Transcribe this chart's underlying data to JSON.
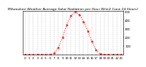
{
  "title": "Milwaukee Weather Average Solar Radiation per Hour W/m2 (Last 24 Hours)",
  "x_values": [
    0,
    1,
    2,
    3,
    4,
    5,
    6,
    7,
    8,
    9,
    10,
    11,
    12,
    13,
    14,
    15,
    16,
    17,
    18,
    19,
    20,
    21,
    22,
    23
  ],
  "y_values": [
    0,
    0,
    0,
    0,
    0,
    0,
    1,
    15,
    80,
    200,
    340,
    450,
    490,
    460,
    380,
    270,
    150,
    50,
    5,
    0,
    0,
    0,
    0,
    0
  ],
  "line_color": "#ff0000",
  "bg_color": "#ffffff",
  "plot_bg_color": "#ffffff",
  "grid_color": "#999999",
  "tick_label_color": "#000000",
  "ylim": [
    0,
    500
  ],
  "ytick_values": [
    100,
    200,
    300,
    400,
    500
  ],
  "title_fontsize": 3.2,
  "tick_fontsize": 2.8,
  "line_width": 0.7,
  "marker": ".",
  "marker_size": 1.5
}
